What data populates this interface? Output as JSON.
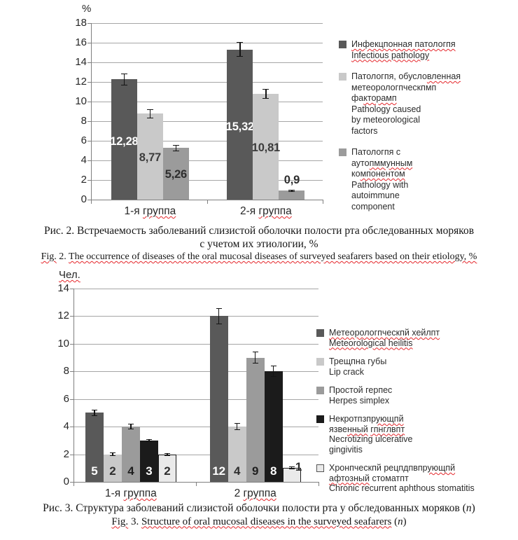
{
  "figure_colors": {
    "dark_gray": "#595959",
    "light_gray": "#c9c9c9",
    "medium_gray": "#9b9b9b",
    "black": "#1b1b1b",
    "near_white": "#eaeaea",
    "gridline": "#a6a6a6",
    "axis": "#7f7f7f",
    "spellcheck_red": "#e5262b"
  },
  "chart_data": [
    {
      "type": "bar",
      "title": "",
      "xlabel": "",
      "ylabel": "%",
      "ylabel_segments": [
        {
          "t": "%",
          "w": 0
        }
      ],
      "ylim": [
        0,
        18
      ],
      "ytick_step": 2,
      "grid": true,
      "legend_position": "right",
      "categories": [
        "1-я группа",
        "2-я группа"
      ],
      "categories_segments": [
        [
          {
            "t": "1-я ",
            "w": 0
          },
          {
            "t": "группа",
            "w": 1
          }
        ],
        [
          {
            "t": "2-я ",
            "w": 0
          },
          {
            "t": "группа",
            "w": 1
          }
        ]
      ],
      "series": [
        {
          "name": "Инфекцпонная патологпя / Infectious pathology",
          "values": [
            12.28,
            15.32
          ],
          "errors": [
            0.6,
            0.75
          ],
          "labels": [
            "12,28",
            "15,32"
          ],
          "color": "#595959",
          "label_color": "#ffffff"
        },
        {
          "name": "Патологпя, обусловленная метеорологпческпмп факторамп / Pathology caused by meteorological factors",
          "values": [
            8.77,
            10.81
          ],
          "errors": [
            0.45,
            0.5
          ],
          "labels": [
            "8,77",
            "10,81"
          ],
          "color": "#c9c9c9",
          "label_color": "#3c3c3c"
        },
        {
          "name": "Патологпя с аутопммунным компонентом / Pathology with autoimmune component",
          "values": [
            5.26,
            0.9
          ],
          "errors": [
            0.3,
            0.12
          ],
          "labels": [
            "5,26",
            "0,9"
          ],
          "color": "#9b9b9b",
          "label_color": "#2e2e2e"
        }
      ],
      "legend": [
        {
          "color": "#595959",
          "lines": [
            [
              {
                "t": "Инфекцпонная патологпя",
                "w": 1
              }
            ],
            [
              {
                "t": "Infectious pathology",
                "w": 1
              }
            ]
          ]
        },
        {
          "color": "#c9c9c9",
          "lines": [
            [
              {
                "t": "Патологпя, обусло",
                "w": 0
              },
              {
                "t": "вленная",
                "w": 1
              }
            ],
            [
              {
                "t": "метеорологпческпмп",
                "w": 0
              }
            ],
            [
              {
                "t": "фа",
                "w": 0
              },
              {
                "t": "кторамп",
                "w": 1
              }
            ],
            [
              {
                "t": "Pathology caused",
                "w": 0
              }
            ],
            [
              {
                "t": "by meteorological",
                "w": 0
              }
            ],
            [
              {
                "t": "factors",
                "w": 0
              }
            ]
          ]
        },
        {
          "color": "#9b9b9b",
          "lines": [
            [
              {
                "t": "Патологпя с",
                "w": 0
              }
            ],
            [
              {
                "t": "ауто",
                "w": 0
              },
              {
                "t": "пммунным",
                "w": 1
              }
            ],
            [
              {
                "t": "ко",
                "w": 0
              },
              {
                "t": "мпонентом",
                "w": 1
              }
            ],
            [
              {
                "t": "Pathology with",
                "w": 0
              }
            ],
            [
              {
                "t": "autoimmune",
                "w": 0
              }
            ],
            [
              {
                "t": "component",
                "w": 0
              }
            ]
          ]
        }
      ]
    },
    {
      "type": "bar",
      "title": "",
      "xlabel": "",
      "ylabel": "Чел.",
      "ylabel_segments": [
        {
          "t": "Чел.",
          "w": 1
        }
      ],
      "ylim": [
        0,
        14
      ],
      "ytick_step": 2,
      "grid": true,
      "legend_position": "right",
      "categories": [
        "1-я группа",
        "2 группа"
      ],
      "categories_segments": [
        [
          {
            "t": "1-я ",
            "w": 0
          },
          {
            "t": "группа",
            "w": 1
          }
        ],
        [
          {
            "t": "2 ",
            "w": 0
          },
          {
            "t": "группа",
            "w": 1
          }
        ]
      ],
      "series": [
        {
          "name": "Метеорологпческпй хейлпт / Meteorological heilitis",
          "values": [
            5,
            12
          ],
          "errors": [
            0.25,
            0.6
          ],
          "labels": [
            "5",
            "12"
          ],
          "color": "#595959",
          "label_color": "#ffffff"
        },
        {
          "name": "Трещпна губы / Lip crack",
          "values": [
            2,
            4
          ],
          "errors": [
            0.12,
            0.25
          ],
          "labels": [
            "2",
            "4"
          ],
          "color": "#c9c9c9",
          "label_color": "#2e2e2e"
        },
        {
          "name": "Простой герпес / Herpes simplex",
          "values": [
            4,
            9
          ],
          "errors": [
            0.2,
            0.45
          ],
          "labels": [
            "4",
            "9"
          ],
          "color": "#9b9b9b",
          "label_color": "#1f1f1f"
        },
        {
          "name": "Некротпзпрующпй язвенный гпнглвпт / Necrotizing ulcerative gingivitis",
          "values": [
            3,
            8
          ],
          "errors": [
            0.12,
            0.4
          ],
          "labels": [
            "3",
            "8"
          ],
          "color": "#1b1b1b",
          "label_color": "#ffffff"
        },
        {
          "name": "Хронпческпй рецпдпвпрующпй афтозный стоматпт / Chronic recurrent aphthous stomatitis",
          "values": [
            2,
            1
          ],
          "errors": [
            0.1,
            0.1
          ],
          "labels": [
            "2",
            "1"
          ],
          "color": "#eaeaea",
          "label_color": "#2e2e2e",
          "border": "#1b1b1b"
        }
      ],
      "legend": [
        {
          "color": "#595959",
          "lines": [
            [
              {
                "t": "Метеорологпческпй хейлпт",
                "w": 1
              }
            ],
            [
              {
                "t": "Meteorological heilitis",
                "w": 1
              }
            ]
          ]
        },
        {
          "color": "#c9c9c9",
          "lines": [
            [
              {
                "t": "Трещпна губы",
                "w": 0
              }
            ],
            [
              {
                "t": "Lip crack",
                "w": 0
              }
            ]
          ]
        },
        {
          "color": "#9b9b9b",
          "lines": [
            [
              {
                "t": "Простой герпес",
                "w": 0
              }
            ],
            [
              {
                "t": "Herpes simplex",
                "w": 0
              }
            ]
          ]
        },
        {
          "color": "#1b1b1b",
          "lines": [
            [
              {
                "t": "Некротпзпр",
                "w": 0
              },
              {
                "t": "ующпй",
                "w": 1
              }
            ],
            [
              {
                "t": "язве",
                "w": 0
              },
              {
                "t": "нный",
                "w": 1
              },
              {
                "t": " ",
                "w": 0
              },
              {
                "t": "гпнглвпт",
                "w": 1
              }
            ],
            [
              {
                "t": "Necrotizing ulcerative",
                "w": 0
              }
            ],
            [
              {
                "t": "gingivitis",
                "w": 0
              }
            ]
          ]
        },
        {
          "color": "#eaeaea",
          "border": "#555555",
          "lines": [
            [
              {
                "t": "Хронпческпй рецпдпвпр",
                "w": 0
              },
              {
                "t": "ующпй",
                "w": 1
              }
            ],
            [
              {
                "t": "афтозный",
                "w": 1
              },
              {
                "t": " стоматпт",
                "w": 0
              }
            ],
            [
              {
                "t": "Chronic recurrent aphthous stomatitis",
                "w": 0
              }
            ]
          ]
        }
      ]
    }
  ],
  "captions": {
    "fig2_ru_line1": "Рис. 2. Встречаемость заболеваний слизистой оболочки полости рта обследованных моряков",
    "fig2_ru_line2": "с учетом их этиологии, %",
    "fig2_en_segments": [
      {
        "t": "Fig.",
        "w": 1
      },
      {
        "t": " 2. ",
        "w": 0
      },
      {
        "t": "The occurrence of diseases of the oral mucosal diseases of surveyed seafarers based on their etiology, %",
        "w": 1
      }
    ],
    "fig3_ru_segments": [
      {
        "t": "Рис. 3. Структура заболеваний слизистой оболочки полости рта у обследованных моряков (",
        "w": 0
      },
      {
        "t": "n",
        "w": 0,
        "i": 1
      },
      {
        "t": ")",
        "w": 0
      }
    ],
    "fig3_en_segments": [
      {
        "t": "Fig.",
        "w": 1
      },
      {
        "t": " 3. ",
        "w": 0
      },
      {
        "t": "Structure of oral mucosal diseases in the surveyed seafarers",
        "w": 1
      },
      {
        "t": " (",
        "w": 0
      },
      {
        "t": "n",
        "w": 0,
        "i": 1
      },
      {
        "t": ")",
        "w": 0
      }
    ]
  }
}
